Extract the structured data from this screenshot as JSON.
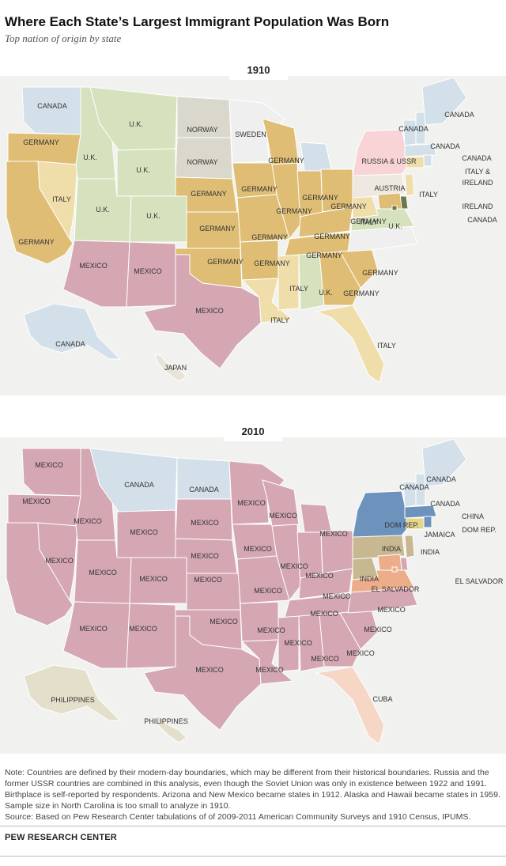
{
  "header": {
    "title": "Where Each State’s Largest Immigrant Population Was Born",
    "subtitle": "Top nation of origin by state"
  },
  "legend_colors": {
    "MEXICO": "#d4a7b3",
    "GERMANY": "#dfbd74",
    "CANADA": "#d3e0ea",
    "U.K.": "#d6e2bd",
    "NORWAY": "#dad7cc",
    "SWEDEN": "#efefef",
    "ITALY": "#f0deaa",
    "RUSSIA & USSR": "#f8d4d6",
    "AUSTRIA": "#ede9e0",
    "IRELAND": "#6a7a4a",
    "JAPAN": "#e8e4da",
    "DOM REP.": "#6d93bd",
    "INDIA": "#c7b892",
    "EL SALVADOR": "#ecae8a",
    "CUBA": "#f6d7c6",
    "PHILIPPINES": "#e4dfca",
    "CHINA": "#e99a96",
    "JAMAICA": "#e8d58c"
  },
  "maps": [
    {
      "year": "1910",
      "labels": [
        "CANADA",
        "U.K.",
        "NORWAY",
        "SWEDEN",
        "CANADA",
        "CANADA",
        "CANADA",
        "CANADA",
        "GERMANY",
        "U.K.",
        "U.K.",
        "NORWAY",
        "GERMANY",
        "RUSSIA & USSR",
        "ITALY &",
        "IRELAND",
        "ITALY",
        "U.K.",
        "U.K.",
        "GERMANY",
        "GERMANY",
        "GERMANY",
        "GERMANY",
        "AUSTRIA",
        "ITALY",
        "IRELAND",
        "GERMANY",
        "GERMANY",
        "GERMANY",
        "GERMANY",
        "ITALY",
        "U.K.",
        "GERMANY",
        "GERMANY",
        "GERMANY",
        "GERMANY",
        "GERMANY",
        "MEXICO",
        "MEXICO",
        "ITALY",
        "U.K.",
        "GERMANY",
        "MEXICO",
        "ITALY",
        "CANADA",
        "ITALY",
        "JAPAN",
        "CANADA",
        "GERMANY"
      ]
    },
    {
      "year": "2010",
      "labels": [
        "MEXICO",
        "CANADA",
        "CANADA",
        "CANADA",
        "CANADA",
        "MEXICO",
        "MEXICO",
        "MEXICO",
        "MEXICO",
        "CANADA",
        "CHINA",
        "MEXICO",
        "MEXICO",
        "MEXICO",
        "DOM REP.",
        "DOM REP.",
        "JAMAICA",
        "MEXICO",
        "MEXICO",
        "MEXICO",
        "INDIA",
        "INDIA",
        "MEXICO",
        "MEXICO",
        "MEXICO",
        "MEXICO",
        "MEXICO",
        "INDIA",
        "EL SALVADOR",
        "MEXICO",
        "EL SALVADOR",
        "MEXICO",
        "MEXICO",
        "MEXICO",
        "MEXICO",
        "MEXICO",
        "MEXICO",
        "MEXICO",
        "MEXICO",
        "MEXICO",
        "MEXICO",
        "MEXICO",
        "MEXICO",
        "MEXICO",
        "PHILIPPINES",
        "CUBA",
        "PHILIPPINES"
      ]
    }
  ],
  "footer": {
    "note": "Note: Countries are defined by their modern-day boundaries, which may be different from their historical boundaries. Russia and the former USSR countries are combined in this analysis, even though the Soviet Union was only in existence between 1922 and 1991. Birthplace is self-reported by respondents. Arizona and New Mexico became states in 1912. Alaska and Hawaii became states in 1959. Sample size in North Carolina is too small to analyze in 1910.",
    "source": "Source: Based on Pew Research Center tabulations of of 2009-2011 American Community Surveys and 1910 Census, IPUMS.",
    "brand": "PEW RESEARCH CENTER"
  }
}
